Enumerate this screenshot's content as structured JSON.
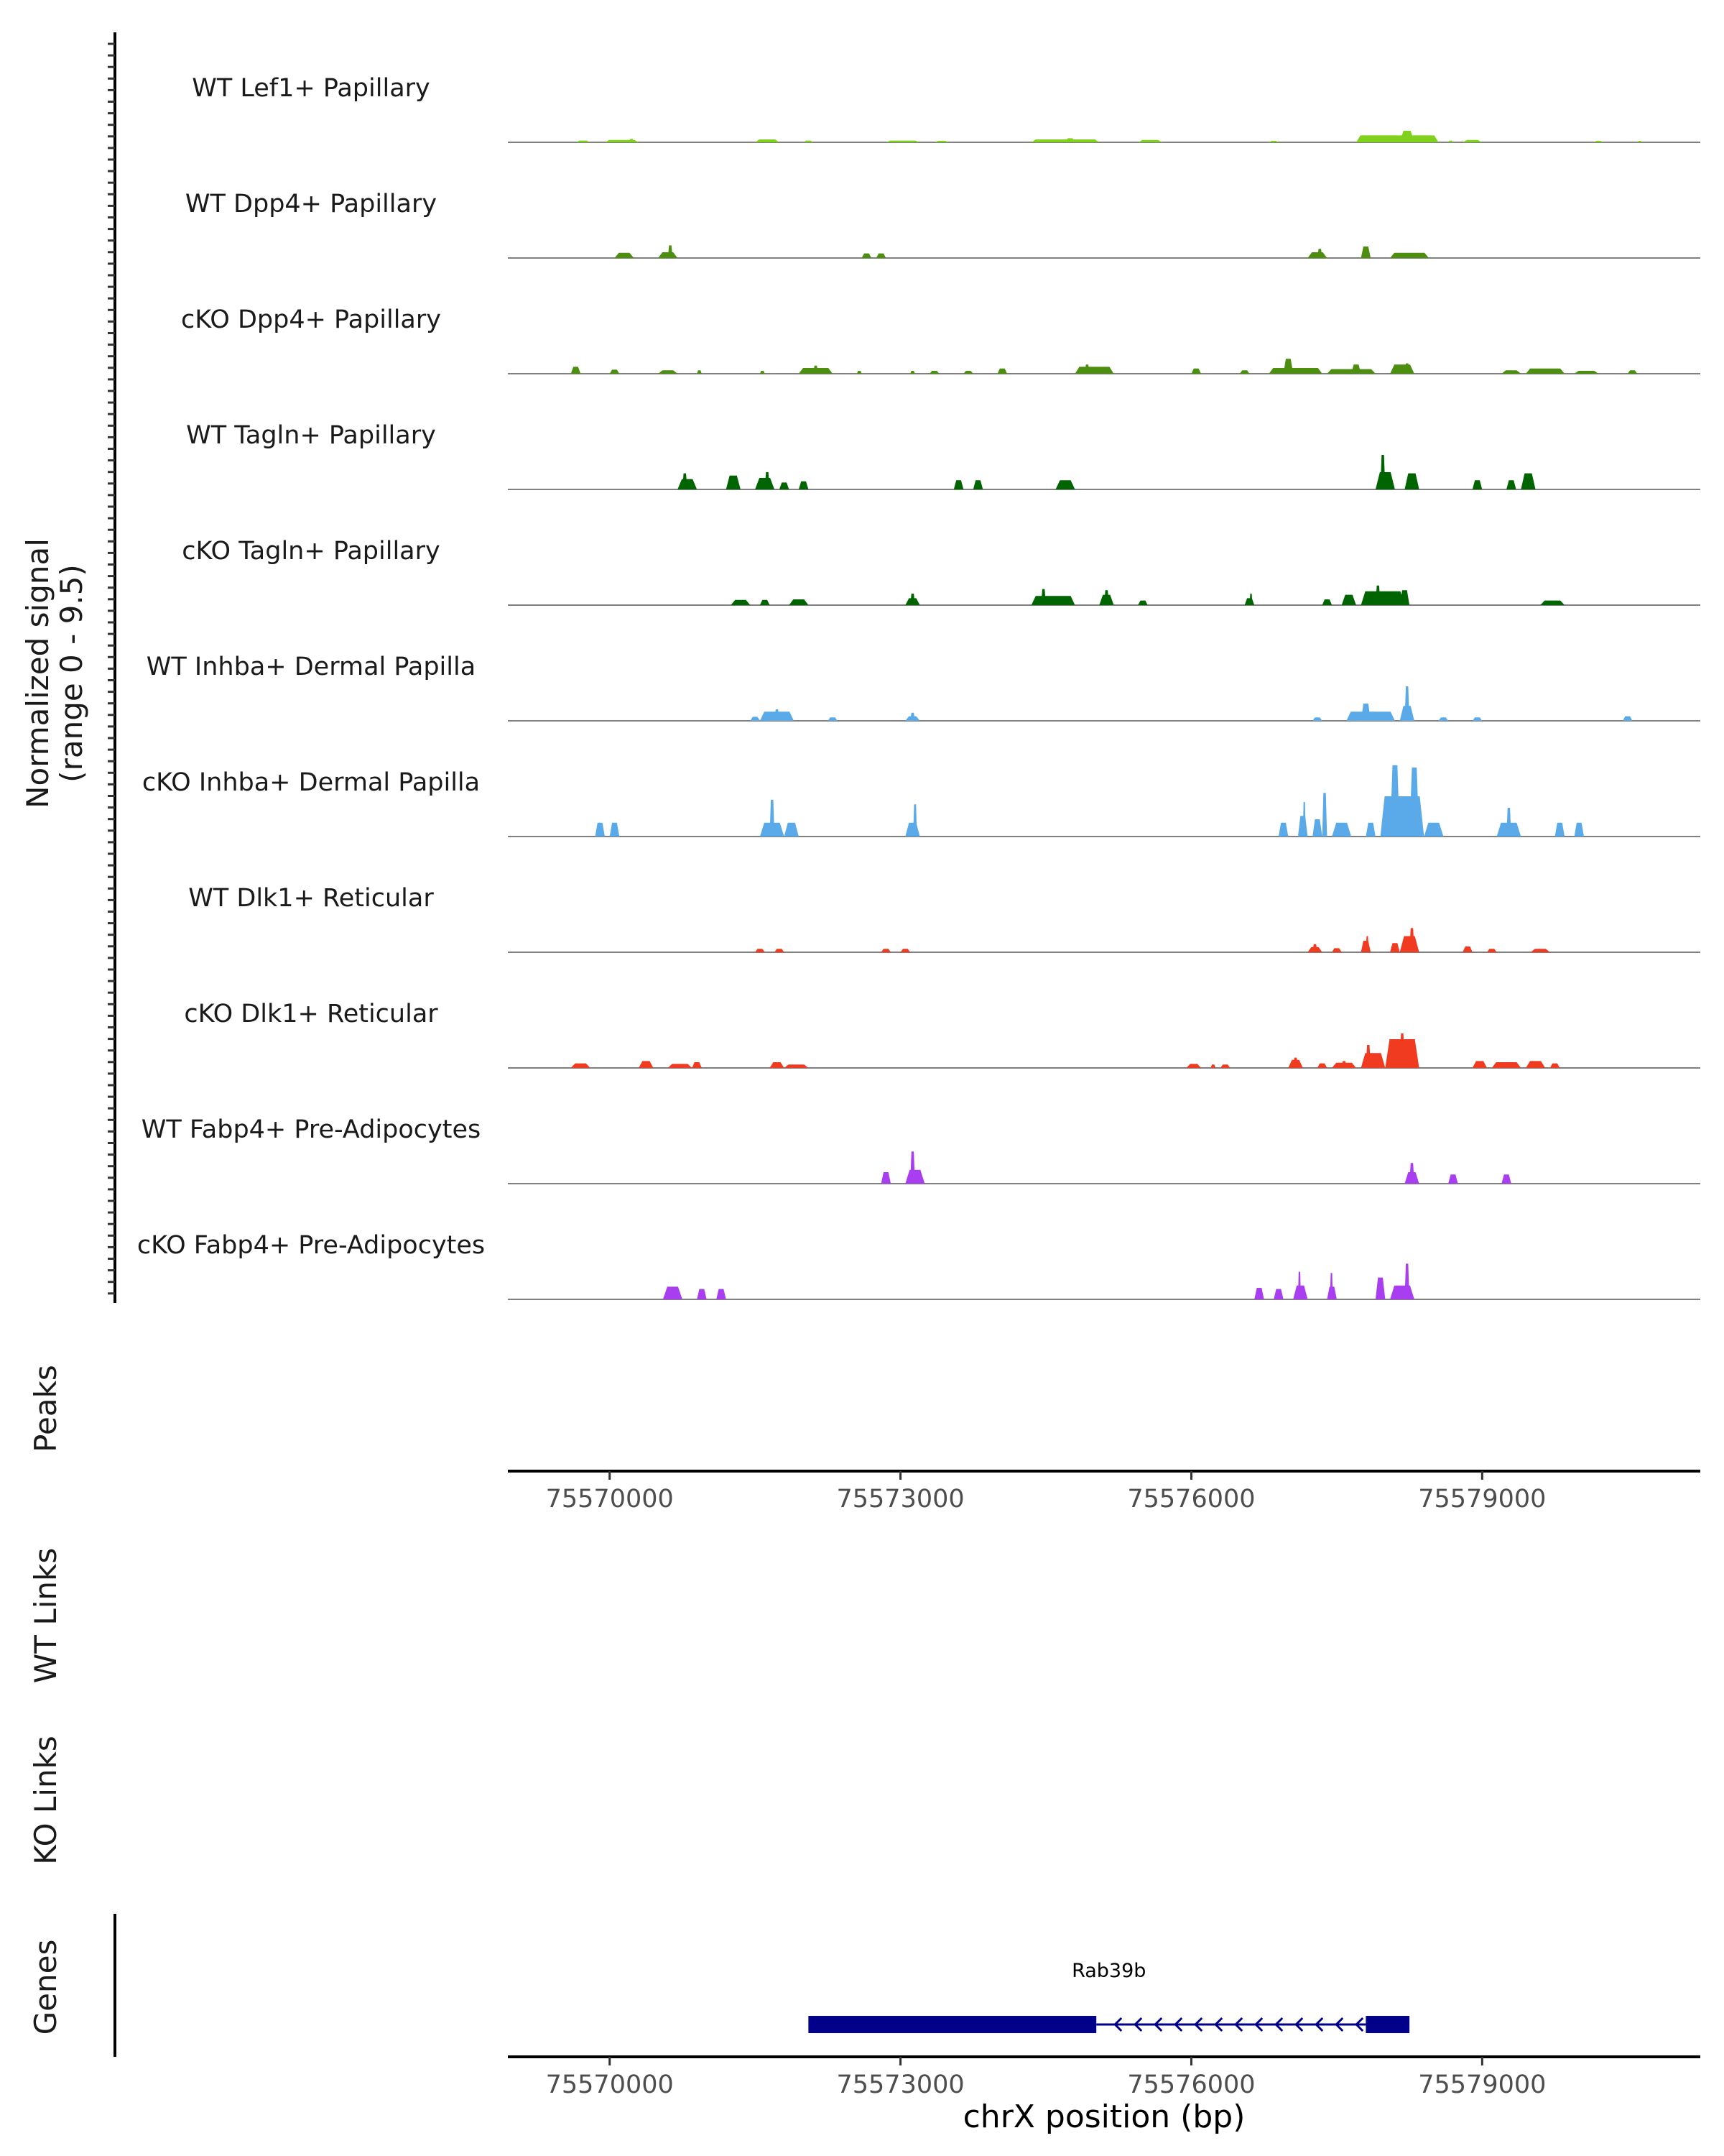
{
  "chart_data": {
    "type": "area",
    "title": "",
    "region": {
      "chromosome": "chrX",
      "start": 75568950,
      "end": 75581250
    },
    "signal_axis": {
      "label_line1": "Normalized signal",
      "label_line2": "(range 0 - 9.5)",
      "range": [
        0,
        9.5
      ]
    },
    "x_ticks": [
      75570000,
      75573000,
      75576000,
      75579000
    ],
    "x_tick_labels": [
      "75570000",
      "75573000",
      "75576000",
      "75579000"
    ],
    "xlabel": "chrX position (bp)",
    "panel_labels": {
      "peaks": "Peaks",
      "wt_links": "WT Links",
      "ko_links": "KO Links",
      "genes": "Genes"
    },
    "tracks": [
      {
        "name": "WT Lef1+ Papillary",
        "color": "#7FD11B",
        "regions": [
          [
            75569650,
            75569800,
            0.15
          ],
          [
            75569950,
            75570300,
            0.2
          ],
          [
            75570200,
            75570250,
            0.3
          ],
          [
            75571500,
            75571750,
            0.25
          ],
          [
            75572000,
            75572100,
            0.15
          ],
          [
            75572850,
            75573200,
            0.15
          ],
          [
            75573350,
            75573500,
            0.12
          ],
          [
            75574350,
            75575050,
            0.25
          ],
          [
            75574700,
            75574800,
            0.35
          ],
          [
            75575450,
            75575700,
            0.2
          ],
          [
            75576800,
            75576900,
            0.12
          ],
          [
            75577700,
            75578550,
            0.6
          ],
          [
            75578150,
            75578300,
            1.0
          ],
          [
            75578650,
            75578700,
            0.15
          ],
          [
            75578800,
            75579000,
            0.2
          ],
          [
            75580150,
            75580250,
            0.12
          ],
          [
            75580600,
            75580650,
            0.1
          ]
        ]
      },
      {
        "name": "WT Dpp4+ Papillary",
        "color": "#4C8E0F",
        "regions": [
          [
            75570050,
            75570250,
            0.45
          ],
          [
            75570500,
            75570700,
            0.5
          ],
          [
            75570600,
            75570650,
            1.1
          ],
          [
            75572600,
            75572700,
            0.4
          ],
          [
            75572750,
            75572850,
            0.4
          ],
          [
            75577200,
            75577400,
            0.5
          ],
          [
            75577300,
            75577350,
            0.8
          ],
          [
            75577750,
            75577850,
            1.0
          ],
          [
            75578050,
            75578450,
            0.45
          ]
        ]
      },
      {
        "name": "cKO Dpp4+ Papillary",
        "color": "#4C8E0F",
        "regions": [
          [
            75569600,
            75569700,
            0.6
          ],
          [
            75570000,
            75570100,
            0.35
          ],
          [
            75570500,
            75570700,
            0.3
          ],
          [
            75570900,
            75570950,
            0.3
          ],
          [
            75571550,
            75571600,
            0.25
          ],
          [
            75571950,
            75572300,
            0.5
          ],
          [
            75572100,
            75572150,
            0.7
          ],
          [
            75572550,
            75572600,
            0.25
          ],
          [
            75573100,
            75573150,
            0.25
          ],
          [
            75573300,
            75573400,
            0.25
          ],
          [
            75573650,
            75573750,
            0.25
          ],
          [
            75574000,
            75574100,
            0.45
          ],
          [
            75574800,
            75575200,
            0.6
          ],
          [
            75574900,
            75574950,
            0.8
          ],
          [
            75576000,
            75576100,
            0.45
          ],
          [
            75576500,
            75576600,
            0.3
          ],
          [
            75576800,
            75577350,
            0.5
          ],
          [
            75576950,
            75577050,
            1.3
          ],
          [
            75577400,
            75577900,
            0.4
          ],
          [
            75577650,
            75577750,
            0.8
          ],
          [
            75578050,
            75578300,
            0.8
          ],
          [
            75578200,
            75578250,
            0.9
          ],
          [
            75579200,
            75579400,
            0.3
          ],
          [
            75579450,
            75579850,
            0.45
          ],
          [
            75579950,
            75580200,
            0.25
          ],
          [
            75580500,
            75580600,
            0.3
          ]
        ]
      },
      {
        "name": "WT Tagln+ Papillary",
        "color": "#006400",
        "regions": [
          [
            75570700,
            75570900,
            0.9
          ],
          [
            75570750,
            75570800,
            1.4
          ],
          [
            75571200,
            75571350,
            1.2
          ],
          [
            75571500,
            75571700,
            1.0
          ],
          [
            75571600,
            75571650,
            1.5
          ],
          [
            75571750,
            75571850,
            0.6
          ],
          [
            75571950,
            75572050,
            0.7
          ],
          [
            75573550,
            75573650,
            0.8
          ],
          [
            75573750,
            75573850,
            0.8
          ],
          [
            75574600,
            75574800,
            0.8
          ],
          [
            75577900,
            75578100,
            1.5
          ],
          [
            75577950,
            75578000,
            3.0
          ],
          [
            75578200,
            75578350,
            1.4
          ],
          [
            75578900,
            75579000,
            0.8
          ],
          [
            75579250,
            75579350,
            0.8
          ],
          [
            75579400,
            75579550,
            1.4
          ]
        ]
      },
      {
        "name": "cKO Tagln+ Papillary",
        "color": "#006400",
        "regions": [
          [
            75571250,
            75571450,
            0.45
          ],
          [
            75571550,
            75571650,
            0.45
          ],
          [
            75571850,
            75572050,
            0.5
          ],
          [
            75573050,
            75573200,
            0.6
          ],
          [
            75573100,
            75573150,
            1.0
          ],
          [
            75574350,
            75574800,
            0.8
          ],
          [
            75574450,
            75574500,
            1.4
          ],
          [
            75575050,
            75575200,
            0.9
          ],
          [
            75575100,
            75575150,
            1.3
          ],
          [
            75575450,
            75575550,
            0.4
          ],
          [
            75576550,
            75576650,
            0.6
          ],
          [
            75576600,
            75576630,
            1.0
          ],
          [
            75577350,
            75577450,
            0.5
          ],
          [
            75577550,
            75577700,
            0.9
          ],
          [
            75577750,
            75578200,
            1.2
          ],
          [
            75577900,
            75577950,
            1.7
          ],
          [
            75578150,
            75578250,
            1.3
          ],
          [
            75579600,
            75579850,
            0.4
          ]
        ]
      },
      {
        "name": "WT Inhba+ Dermal Papilla",
        "color": "#5AAAEA",
        "regions": [
          [
            75571450,
            75571550,
            0.35
          ],
          [
            75571550,
            75571900,
            0.8
          ],
          [
            75571700,
            75571750,
            1.0
          ],
          [
            75572250,
            75572350,
            0.3
          ],
          [
            75573050,
            75573200,
            0.4
          ],
          [
            75573100,
            75573150,
            0.7
          ],
          [
            75577250,
            75577350,
            0.3
          ],
          [
            75577600,
            75578100,
            0.8
          ],
          [
            75577750,
            75577850,
            1.5
          ],
          [
            75578150,
            75578300,
            1.3
          ],
          [
            75578200,
            75578250,
            3.0
          ],
          [
            75578550,
            75578650,
            0.3
          ],
          [
            75578900,
            75579000,
            0.3
          ],
          [
            75580450,
            75580550,
            0.4
          ]
        ]
      },
      {
        "name": "cKO Inhba+ Dermal Papilla",
        "color": "#5AAAEA",
        "regions": [
          [
            75569850,
            75569950,
            1.2
          ],
          [
            75570000,
            75570100,
            1.2
          ],
          [
            75571550,
            75571800,
            1.2
          ],
          [
            75571650,
            75571700,
            3.2
          ],
          [
            75571800,
            75571950,
            1.2
          ],
          [
            75573050,
            75573200,
            1.2
          ],
          [
            75573130,
            75573170,
            2.8
          ],
          [
            75576900,
            75577000,
            1.2
          ],
          [
            75577100,
            75577200,
            1.8
          ],
          [
            75577150,
            75577180,
            3.0
          ],
          [
            75577250,
            75577350,
            1.5
          ],
          [
            75577350,
            75577400,
            3.8
          ],
          [
            75577450,
            75577650,
            1.2
          ],
          [
            75577800,
            75577900,
            1.2
          ],
          [
            75577950,
            75578400,
            3.5
          ],
          [
            75578050,
            75578150,
            6.2
          ],
          [
            75578250,
            75578350,
            6.0
          ],
          [
            75578400,
            75578600,
            1.2
          ],
          [
            75579150,
            75579400,
            1.2
          ],
          [
            75579250,
            75579300,
            2.5
          ],
          [
            75579750,
            75579850,
            1.2
          ],
          [
            75579950,
            75580050,
            1.2
          ]
        ]
      },
      {
        "name": "WT Dlk1+ Reticular",
        "color": "#F03B20",
        "regions": [
          [
            75571500,
            75571600,
            0.3
          ],
          [
            75571700,
            75571800,
            0.3
          ],
          [
            75572800,
            75572900,
            0.3
          ],
          [
            75573000,
            75573100,
            0.3
          ],
          [
            75577200,
            75577350,
            0.45
          ],
          [
            75577250,
            75577300,
            0.7
          ],
          [
            75577450,
            75577550,
            0.35
          ],
          [
            75577750,
            75577850,
            1.0
          ],
          [
            75577800,
            75577830,
            1.4
          ],
          [
            75578050,
            75578150,
            0.8
          ],
          [
            75578150,
            75578350,
            1.4
          ],
          [
            75578250,
            75578300,
            2.1
          ],
          [
            75578800,
            75578900,
            0.5
          ],
          [
            75579050,
            75579150,
            0.3
          ],
          [
            75579500,
            75579700,
            0.3
          ]
        ]
      },
      {
        "name": "cKO Dlk1+ Reticular",
        "color": "#F03B20",
        "regions": [
          [
            75569600,
            75569800,
            0.4
          ],
          [
            75570300,
            75570450,
            0.6
          ],
          [
            75570600,
            75570850,
            0.35
          ],
          [
            75570850,
            75570950,
            0.5
          ],
          [
            75571650,
            75571800,
            0.5
          ],
          [
            75571800,
            75572050,
            0.3
          ],
          [
            75575950,
            75576100,
            0.35
          ],
          [
            75576200,
            75576250,
            0.3
          ],
          [
            75576300,
            75576400,
            0.3
          ],
          [
            75577000,
            75577150,
            0.7
          ],
          [
            75577050,
            75577100,
            0.9
          ],
          [
            75577300,
            75577400,
            0.4
          ],
          [
            75577450,
            75577700,
            0.45
          ],
          [
            75577550,
            75577600,
            0.6
          ],
          [
            75577750,
            75578000,
            1.3
          ],
          [
            75577800,
            75577850,
            2.0
          ],
          [
            75578000,
            75578350,
            2.5
          ],
          [
            75578150,
            75578200,
            3.0
          ],
          [
            75578900,
            75579050,
            0.6
          ],
          [
            75579100,
            75579400,
            0.5
          ],
          [
            75579450,
            75579650,
            0.6
          ],
          [
            75579700,
            75579800,
            0.4
          ]
        ]
      },
      {
        "name": "WT Fabp4+ Pre-Adipocytes",
        "color": "#A93EF0",
        "regions": [
          [
            75572800,
            75572900,
            1.0
          ],
          [
            75573050,
            75573250,
            1.2
          ],
          [
            75573100,
            75573150,
            2.8
          ],
          [
            75578200,
            75578350,
            1.0
          ],
          [
            75578250,
            75578300,
            1.8
          ],
          [
            75578650,
            75578750,
            0.8
          ],
          [
            75579200,
            75579300,
            0.8
          ]
        ]
      },
      {
        "name": "cKO Fabp4+ Pre-Adipocytes",
        "color": "#A93EF0",
        "regions": [
          [
            75570550,
            75570750,
            1.1
          ],
          [
            75570900,
            75571000,
            0.9
          ],
          [
            75571100,
            75571200,
            0.9
          ],
          [
            75576650,
            75576750,
            1.0
          ],
          [
            75576850,
            75576950,
            0.9
          ],
          [
            75577050,
            75577200,
            1.2
          ],
          [
            75577100,
            75577130,
            2.4
          ],
          [
            75577400,
            75577500,
            1.1
          ],
          [
            75577430,
            75577460,
            2.3
          ],
          [
            75577900,
            75578000,
            1.9
          ],
          [
            75578050,
            75578300,
            1.2
          ],
          [
            75578200,
            75578250,
            3.1
          ]
        ]
      }
    ],
    "genes": [
      {
        "name": "Rab39b",
        "strand": "-",
        "color": "#00008B",
        "exons": [
          [
            75572050,
            75575020
          ],
          [
            75577800,
            75578250
          ]
        ],
        "intron": [
          75575020,
          75577800
        ]
      }
    ]
  }
}
